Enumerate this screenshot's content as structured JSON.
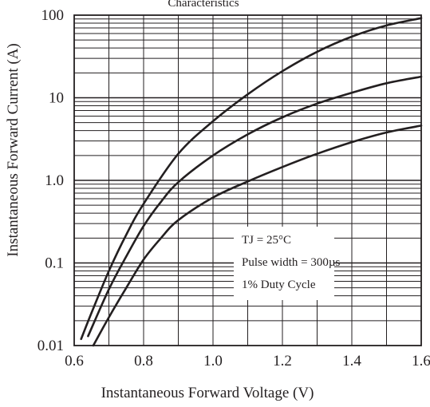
{
  "chart_data": {
    "type": "line",
    "title": "Characteristics",
    "xlabel": "Instantaneous Forward Voltage (V)",
    "ylabel": "Instantaneous Forward Current (A)",
    "xlim": [
      0.6,
      1.6
    ],
    "ylim": [
      0.01,
      100
    ],
    "y_scale": "log",
    "grid": true,
    "x_ticks": [
      {
        "value": 0.6,
        "label": "0.6"
      },
      {
        "value": 0.8,
        "label": "0.8"
      },
      {
        "value": 1.0,
        "label": "1.0"
      },
      {
        "value": 1.2,
        "label": "1.2"
      },
      {
        "value": 1.4,
        "label": "1.4"
      },
      {
        "value": 1.6,
        "label": "1.6"
      }
    ],
    "y_ticks": [
      {
        "value": 0.01,
        "label": "0.01"
      },
      {
        "value": 0.1,
        "label": "0.1"
      },
      {
        "value": 1,
        "label": "1.0"
      },
      {
        "value": 10,
        "label": "10"
      },
      {
        "value": 100,
        "label": "100"
      }
    ],
    "annotations": [
      "TJ = 25°C",
      "Pulse width = 300µs",
      "1% Duty Cycle"
    ],
    "series": [
      {
        "points": [
          [
            0.62,
            0.012
          ],
          [
            0.65,
            0.025
          ],
          [
            0.7,
            0.08
          ],
          [
            0.75,
            0.22
          ],
          [
            0.8,
            0.52
          ],
          [
            0.9,
            2.1
          ],
          [
            1.0,
            5.2
          ],
          [
            1.1,
            11
          ],
          [
            1.2,
            21
          ],
          [
            1.3,
            36
          ],
          [
            1.4,
            55
          ],
          [
            1.5,
            75
          ],
          [
            1.6,
            92
          ]
        ]
      },
      {
        "points": [
          [
            0.64,
            0.013
          ],
          [
            0.7,
            0.048
          ],
          [
            0.75,
            0.12
          ],
          [
            0.8,
            0.28
          ],
          [
            0.85,
            0.55
          ],
          [
            0.9,
            0.95
          ],
          [
            1.0,
            2.0
          ],
          [
            1.1,
            3.6
          ],
          [
            1.2,
            5.8
          ],
          [
            1.3,
            8.5
          ],
          [
            1.4,
            11.5
          ],
          [
            1.5,
            15
          ],
          [
            1.6,
            18
          ]
        ]
      },
      {
        "points": [
          [
            0.655,
            0.01
          ],
          [
            0.7,
            0.022
          ],
          [
            0.75,
            0.05
          ],
          [
            0.8,
            0.11
          ],
          [
            0.85,
            0.2
          ],
          [
            0.9,
            0.33
          ],
          [
            1.0,
            0.62
          ],
          [
            1.1,
            0.97
          ],
          [
            1.2,
            1.45
          ],
          [
            1.3,
            2.1
          ],
          [
            1.4,
            2.9
          ],
          [
            1.5,
            3.8
          ],
          [
            1.6,
            4.6
          ]
        ]
      }
    ]
  }
}
